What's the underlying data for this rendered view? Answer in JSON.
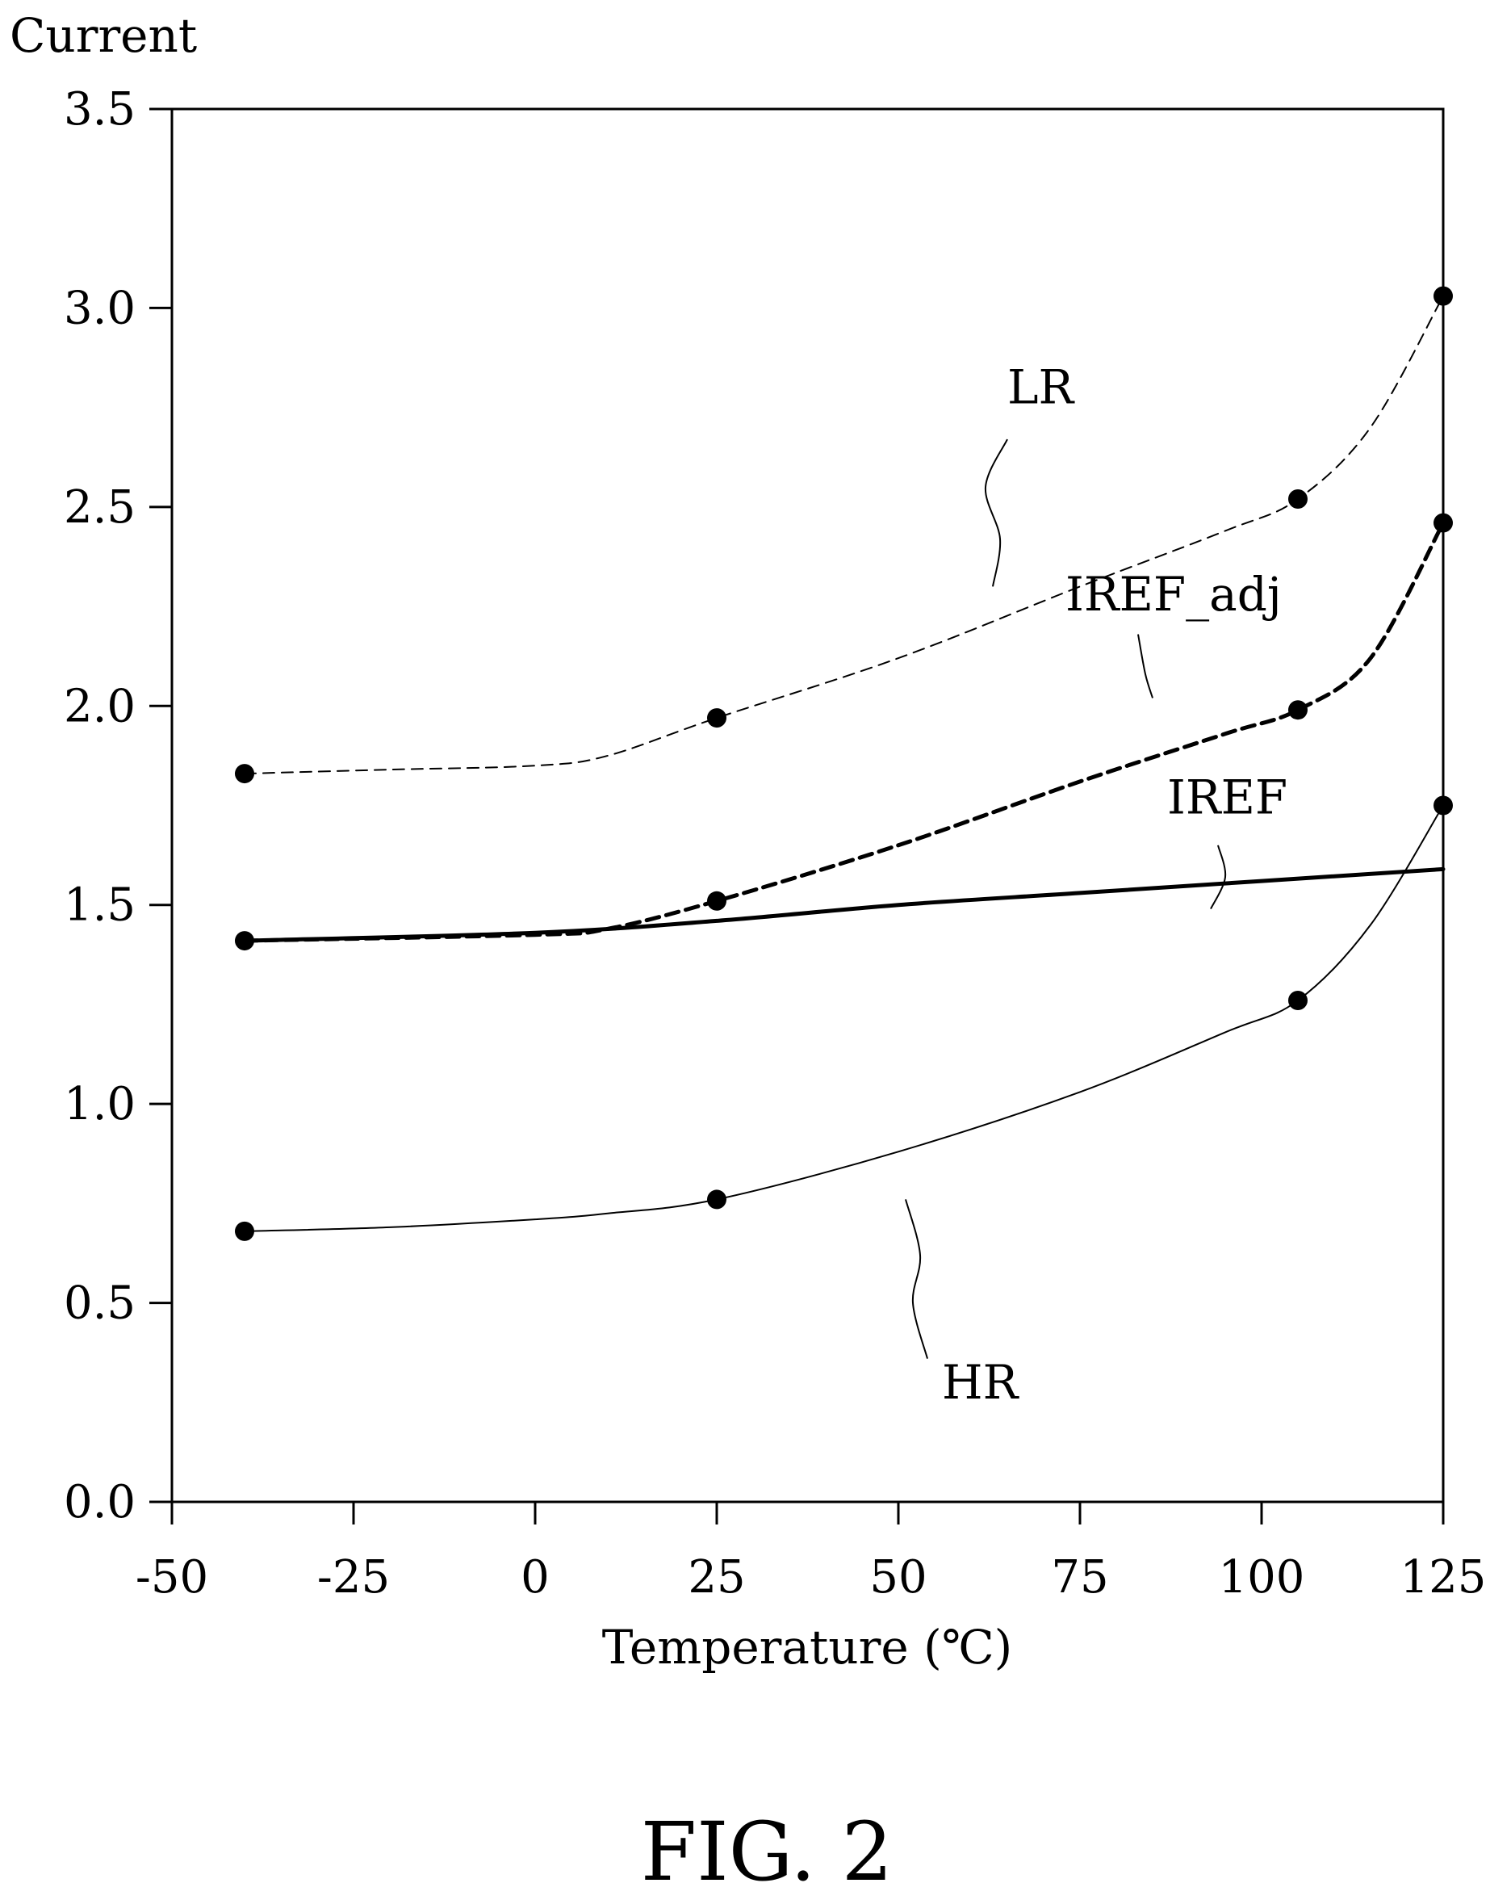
{
  "chart_data": {
    "type": "line",
    "title": "",
    "xlabel": "Temperature (℃)",
    "ylabel": "Current",
    "xlim": [
      -50,
      125
    ],
    "ylim": [
      0.0,
      3.5
    ],
    "x_ticks": [
      "-50",
      "-25",
      "0",
      "25",
      "50",
      "75",
      "100",
      "125"
    ],
    "y_ticks": [
      "0.0",
      "0.5",
      "1.0",
      "1.5",
      "2.0",
      "2.5",
      "3.0",
      "3.5"
    ],
    "x_tick_values": [
      -50,
      -25,
      0,
      25,
      50,
      75,
      100,
      125
    ],
    "y_tick_values": [
      0.0,
      0.5,
      1.0,
      1.5,
      2.0,
      2.5,
      3.0,
      3.5
    ],
    "grid": false,
    "series": [
      {
        "name": "LR",
        "style": "thin-dashed",
        "markers": [
          [
            -40,
            1.83
          ],
          [
            25,
            1.97
          ],
          [
            105,
            2.52
          ],
          [
            125,
            3.03
          ]
        ],
        "curve": [
          [
            -40,
            1.83
          ],
          [
            -20,
            1.84
          ],
          [
            0,
            1.85
          ],
          [
            10,
            1.875
          ],
          [
            25,
            1.97
          ],
          [
            50,
            2.12
          ],
          [
            75,
            2.3
          ],
          [
            95,
            2.44
          ],
          [
            105,
            2.52
          ],
          [
            115,
            2.7
          ],
          [
            125,
            3.03
          ]
        ]
      },
      {
        "name": "IREF_adj",
        "style": "thick-dashed",
        "markers": [
          [
            -40,
            1.41
          ],
          [
            25,
            1.51
          ],
          [
            105,
            1.99
          ],
          [
            125,
            2.46
          ]
        ],
        "curve": [
          [
            -40,
            1.41
          ],
          [
            0,
            1.425
          ],
          [
            10,
            1.44
          ],
          [
            25,
            1.51
          ],
          [
            50,
            1.65
          ],
          [
            75,
            1.81
          ],
          [
            95,
            1.93
          ],
          [
            105,
            1.99
          ],
          [
            115,
            2.12
          ],
          [
            125,
            2.46
          ]
        ]
      },
      {
        "name": "IREF",
        "style": "thick-solid",
        "markers": [],
        "curve": [
          [
            -40,
            1.41
          ],
          [
            0,
            1.43
          ],
          [
            25,
            1.46
          ],
          [
            50,
            1.5
          ],
          [
            75,
            1.53
          ],
          [
            100,
            1.56
          ],
          [
            125,
            1.59
          ]
        ]
      },
      {
        "name": "HR",
        "style": "thin-solid",
        "markers": [
          [
            -40,
            0.68
          ],
          [
            25,
            0.76
          ],
          [
            105,
            1.26
          ],
          [
            125,
            1.75
          ]
        ],
        "curve": [
          [
            -40,
            0.68
          ],
          [
            -20,
            0.69
          ],
          [
            0,
            0.71
          ],
          [
            10,
            0.725
          ],
          [
            25,
            0.76
          ],
          [
            50,
            0.88
          ],
          [
            75,
            1.03
          ],
          [
            95,
            1.18
          ],
          [
            105,
            1.26
          ],
          [
            115,
            1.45
          ],
          [
            125,
            1.75
          ]
        ]
      }
    ],
    "series_labels": [
      {
        "text": "LR",
        "at": [
          65,
          2.76
        ],
        "leader": [
          [
            65,
            2.67
          ],
          [
            62,
            2.55
          ],
          [
            64,
            2.42
          ],
          [
            63,
            2.3
          ]
        ]
      },
      {
        "text": "IREF_adj",
        "at": [
          73,
          2.24
        ],
        "leader": [
          [
            83,
            2.18
          ],
          [
            84,
            2.08
          ],
          [
            85,
            2.02
          ]
        ]
      },
      {
        "text": "IREF",
        "at": [
          87,
          1.73
        ],
        "leader": [
          [
            94,
            1.65
          ],
          [
            95,
            1.57
          ],
          [
            93,
            1.49
          ]
        ]
      },
      {
        "text": "HR",
        "at": [
          56,
          0.26
        ],
        "leader": [
          [
            54,
            0.36
          ],
          [
            52,
            0.5
          ],
          [
            53,
            0.62
          ],
          [
            51,
            0.76
          ]
        ]
      }
    ],
    "caption": "FIG. 2"
  }
}
